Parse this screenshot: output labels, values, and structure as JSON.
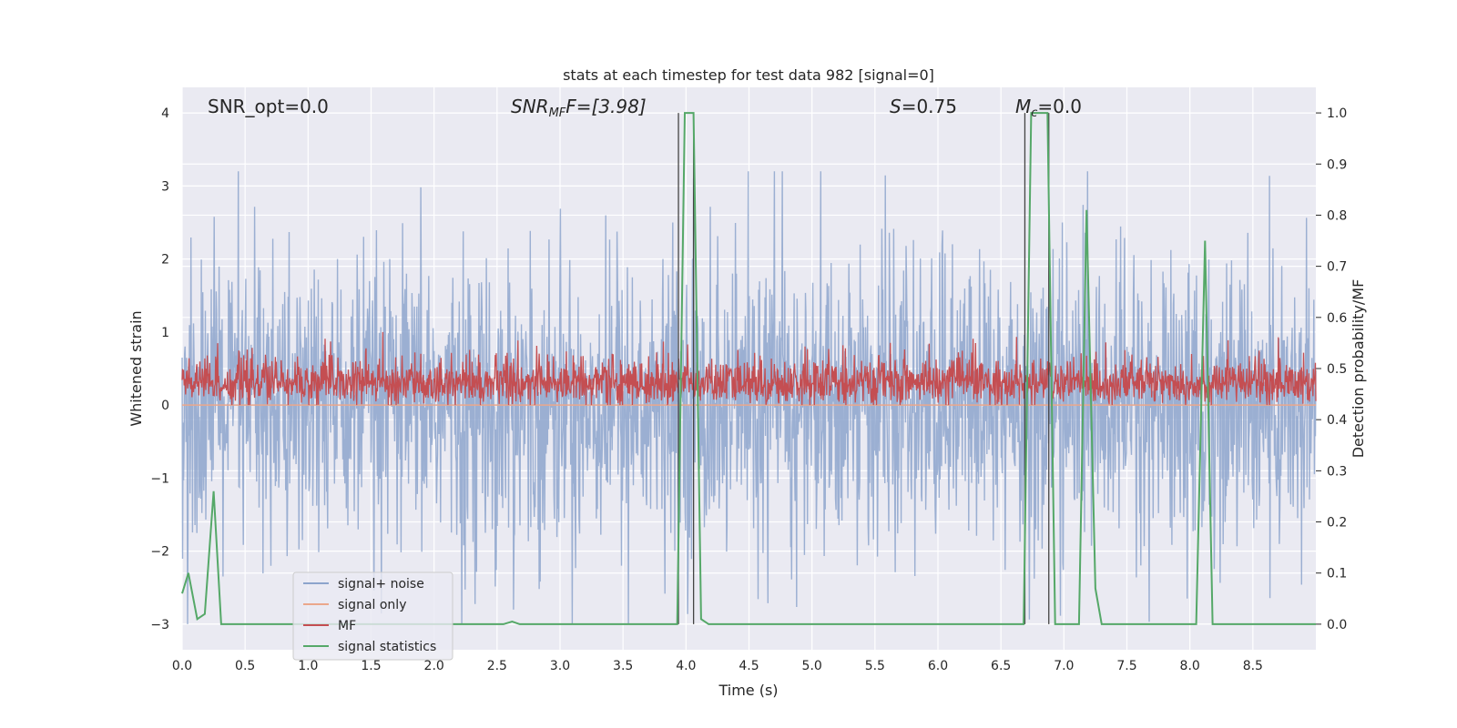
{
  "chart_data": {
    "type": "line",
    "title": "stats at each timestep for test data 982 [signal=0]",
    "xlabel": "Time (s)",
    "ylabel": "Whitened strain",
    "y2label": "Detection probability/MF",
    "xlim": [
      0.0,
      9.0
    ],
    "ylim": [
      -3.35,
      4.35
    ],
    "y2lim": [
      -0.05,
      1.05
    ],
    "xticks": [
      "0.0",
      "0.5",
      "1.0",
      "1.5",
      "2.0",
      "2.5",
      "3.0",
      "3.5",
      "4.0",
      "4.5",
      "5.0",
      "5.5",
      "6.0",
      "6.5",
      "7.0",
      "7.5",
      "8.0",
      "8.5"
    ],
    "yticks": [
      "−3",
      "−2",
      "−1",
      "0",
      "1",
      "2",
      "3",
      "4"
    ],
    "y2ticks": [
      "0.0",
      "0.1",
      "0.2",
      "0.3",
      "0.4",
      "0.5",
      "0.6",
      "0.7",
      "0.8",
      "0.9",
      "1.0"
    ],
    "grid": true,
    "legend_position": "lower-left",
    "annotations": {
      "snr_opt": "SNR_opt=0.0",
      "snr_mf_main": "SNR",
      "snr_mf_sub": "MF",
      "snr_mf_rest": "F=[3.98]",
      "s_main": "S",
      "s_rest": "=0.75",
      "mc_main": "M",
      "mc_sub": "c",
      "mc_rest": "=0.0"
    },
    "series": [
      {
        "name": "signal+ noise",
        "color": "#8da4cc",
        "style": "noise",
        "amplitude_range": [
          -3.0,
          3.2
        ]
      },
      {
        "name": "signal only",
        "color": "#eba78b",
        "values_constant": 0.0
      },
      {
        "name": "MF",
        "color": "#c44e52",
        "style": "mf",
        "y_range": [
          0.0,
          1.0
        ]
      },
      {
        "name": "signal statistics",
        "color": "#55a868",
        "axis": "right",
        "x": [
          0.0,
          0.05,
          0.12,
          0.18,
          0.25,
          0.31,
          0.37,
          2.55,
          2.62,
          2.68,
          3.93,
          3.99,
          4.06,
          4.12,
          4.18,
          6.68,
          6.74,
          6.8,
          6.87,
          6.93,
          7.12,
          7.18,
          7.25,
          7.3,
          8.05,
          8.12,
          8.18,
          9.0
        ],
        "y": [
          0.06,
          0.1,
          0.01,
          0.02,
          0.26,
          0.0,
          0.0,
          0.0,
          0.005,
          0.0,
          0.0,
          1.0,
          1.0,
          0.01,
          0.0,
          0.0,
          1.0,
          1.0,
          1.0,
          0.0,
          0.0,
          0.81,
          0.07,
          0.0,
          0.0,
          0.75,
          0.0,
          0.0
        ]
      }
    ],
    "vertical_markers_x": [
      3.94,
      4.06,
      6.69,
      6.88
    ]
  }
}
